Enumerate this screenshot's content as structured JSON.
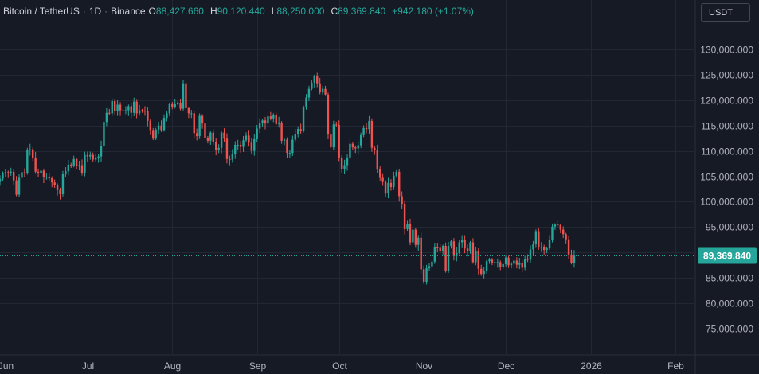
{
  "header": {
    "symbol": "Bitcoin / TetherUS",
    "interval": "1D",
    "exchange": "Binance",
    "separator": "·",
    "open_label": "O",
    "open": "88,427.660",
    "high_label": "H",
    "high": "90,120.440",
    "low_label": "L",
    "low": "88,250.000",
    "close_label": "C",
    "close": "89,369.840",
    "change": "+942.180 (+1.07%)"
  },
  "currency_button": "USDT",
  "colors": {
    "up": "#26a69a",
    "down": "#ef5350",
    "background": "#161a25",
    "grid": "#232734",
    "price_tag": "#26a69a"
  },
  "chart_data": {
    "type": "candlestick",
    "x_range": [
      "2025-05-30",
      "2026-02-08"
    ],
    "y_range": [
      70000,
      135000
    ],
    "y_ticks": [
      75000,
      80000,
      85000,
      90000,
      95000,
      100000,
      105000,
      110000,
      115000,
      120000,
      125000,
      130000
    ],
    "y_tick_labels": [
      "75,000.000",
      "80,000.000",
      "85,000.000",
      "90,000.000",
      "95,000.000",
      "100,000.000",
      "105,000.000",
      "110,000.000",
      "115,000.000",
      "120,000.000",
      "125,000.000",
      "130,000.000"
    ],
    "x_ticks": [
      {
        "date": "2025-06-01",
        "label": "Jun"
      },
      {
        "date": "2025-07-01",
        "label": "Jul"
      },
      {
        "date": "2025-08-01",
        "label": "Aug"
      },
      {
        "date": "2025-09-01",
        "label": "Sep"
      },
      {
        "date": "2025-10-01",
        "label": "Oct"
      },
      {
        "date": "2025-11-01",
        "label": "Nov"
      },
      {
        "date": "2025-12-01",
        "label": "Dec"
      },
      {
        "date": "2026-01-01",
        "label": "2026"
      },
      {
        "date": "2026-02-01",
        "label": "Feb"
      }
    ],
    "current_price": 89369.84,
    "current_price_label": "89,369.840",
    "grid": true,
    "series": [
      {
        "start_date": "2025-05-30",
        "interval": "1D",
        "close": [
          104500,
          105600,
          105800,
          105700,
          105900,
          104200,
          101400,
          104700,
          105800,
          105600,
          110200,
          110300,
          108700,
          105900,
          105600,
          106100,
          104800,
          104900,
          104600,
          103800,
          103300,
          102300,
          101500,
          105400,
          106000,
          107300,
          107100,
          108400,
          107000,
          107200,
          105700,
          109200,
          108900,
          109200,
          108300,
          108600,
          108900,
          111000,
          115700,
          117500,
          117400,
          119800,
          117800,
          119100,
          118000,
          117900,
          118000,
          118800,
          117500,
          119700,
          117400,
          118000,
          117900,
          117800,
          115900,
          114100,
          112400,
          114200,
          115000,
          114100,
          116500,
          117400,
          119200,
          118700,
          119200,
          119400,
          118300,
          123300,
          118400,
          117400,
          117400,
          113500,
          112900,
          116900,
          115400,
          112500,
          112000,
          113600,
          111800,
          110200,
          110600,
          113600,
          112400,
          108400,
          108300,
          109300,
          111200,
          111200,
          110800,
          112100,
          113000,
          111600,
          110000,
          112300,
          114400,
          115400,
          116000,
          115400,
          116800,
          116400,
          117000,
          115300,
          115600,
          112000,
          112200,
          109600,
          109600,
          112200,
          113300,
          114300,
          114000,
          118600,
          120500,
          122200,
          123400,
          124700,
          123300,
          121500,
          122200,
          121100,
          113200,
          110700,
          115200,
          115100,
          108700,
          106500,
          107200,
          108700,
          111400,
          110700,
          110500,
          111100,
          113100,
          114500,
          114300,
          115900,
          110600,
          110100,
          106400,
          104700,
          103900,
          101600,
          103700,
          102900,
          105100,
          105900,
          101100,
          99600,
          94600,
          95600,
          92000,
          94500,
          91500,
          92900,
          86700,
          84100,
          86900,
          87300,
          88200,
          91000,
          90900,
          90300,
          91300,
          86300,
          91300,
          92200,
          89300,
          89900,
          92000,
          92400,
          90800,
          90300,
          92000,
          88100,
          90300,
          86800,
          85800,
          86300,
          88300,
          88600,
          88000,
          88100,
          88100,
          87100,
          87700,
          89000,
          87500,
          87800,
          88400,
          87600,
          87900,
          87000,
          88700,
          88600,
          90600,
          91600,
          94200,
          91000,
          91100,
          90500,
          90800,
          92500,
          95100,
          95500,
          95400,
          94500,
          93600,
          92600,
          89600,
          88000,
          89370
        ]
      }
    ]
  }
}
